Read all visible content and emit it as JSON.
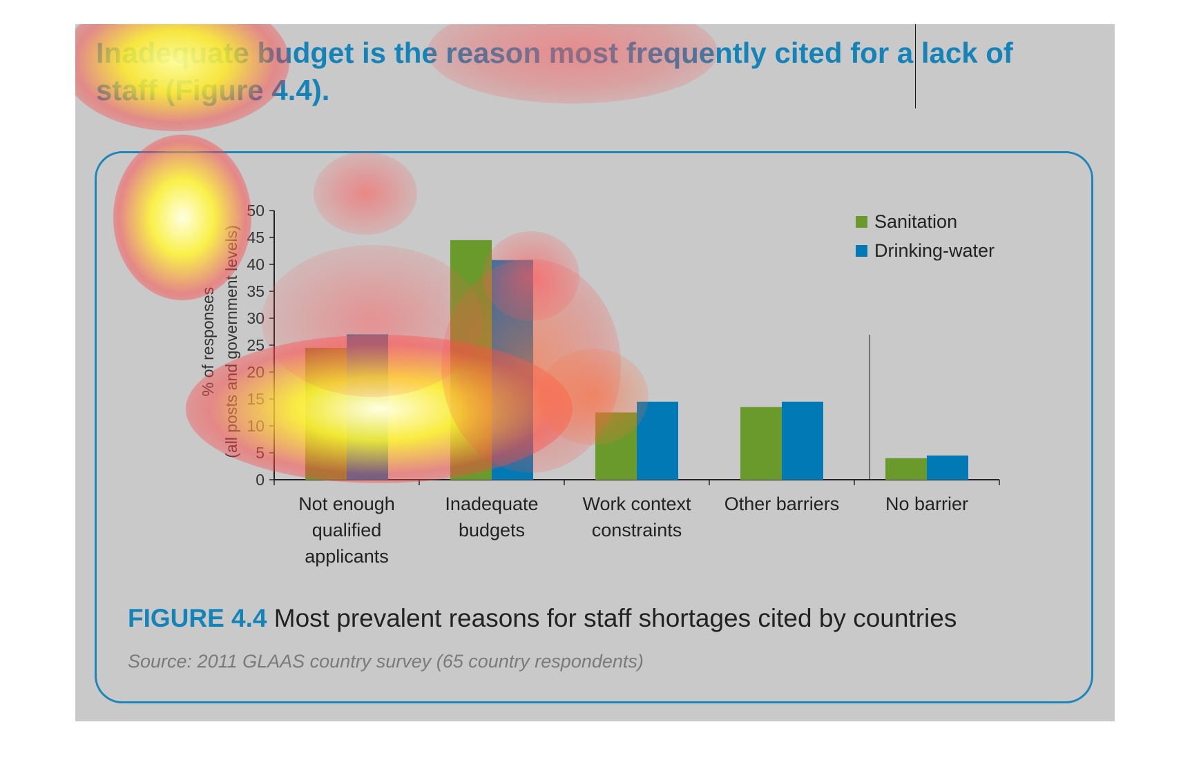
{
  "headline": "Inadequate budget is the reason most frequently cited for a lack of staff (Figure 4.4).",
  "figure": {
    "label": "FIGURE 4.4",
    "title": "Most prevalent reasons for staff shortages cited by countries",
    "source": "Source: 2011 GLAAS country survey (65 country respondents)"
  },
  "colors": {
    "sanitation": "#6a9a2b",
    "drinking_water": "#0079b4",
    "frame": "#1c85b9",
    "background": "#c9c9c9"
  },
  "chart_data": {
    "type": "bar",
    "categories": [
      [
        "Not enough",
        "qualified",
        "applicants"
      ],
      [
        "Inadequate",
        "budgets"
      ],
      [
        "Work context",
        "constraints"
      ],
      [
        "Other barriers"
      ],
      [
        "No barrier"
      ]
    ],
    "series": [
      {
        "name": "Sanitation",
        "color": "#6a9a2b",
        "values": [
          24.5,
          44.5,
          12.5,
          13.5,
          4
        ]
      },
      {
        "name": "Drinking-water",
        "color": "#0079b4",
        "values": [
          27,
          40.8,
          14.5,
          14.5,
          4.5
        ]
      }
    ],
    "ylabel_lines": [
      "% of responses",
      "(all posts and government levels)"
    ],
    "ylim": [
      0,
      50
    ],
    "yticks": [
      0,
      5,
      10,
      15,
      20,
      25,
      30,
      35,
      40,
      45,
      50
    ],
    "legend_position": "top-right",
    "grid": false
  },
  "overlay": {
    "type": "attention-heatmap",
    "hotspots": [
      {
        "area": "headline start",
        "intensity": 1.0
      },
      {
        "area": "headline middle",
        "intensity": 0.5
      },
      {
        "area": "y-axis label",
        "intensity": 1.0
      },
      {
        "area": "first category bars",
        "intensity": 1.0
      },
      {
        "area": "second category bars",
        "intensity": 0.6
      },
      {
        "area": "third category bars",
        "intensity": 0.5
      }
    ]
  }
}
